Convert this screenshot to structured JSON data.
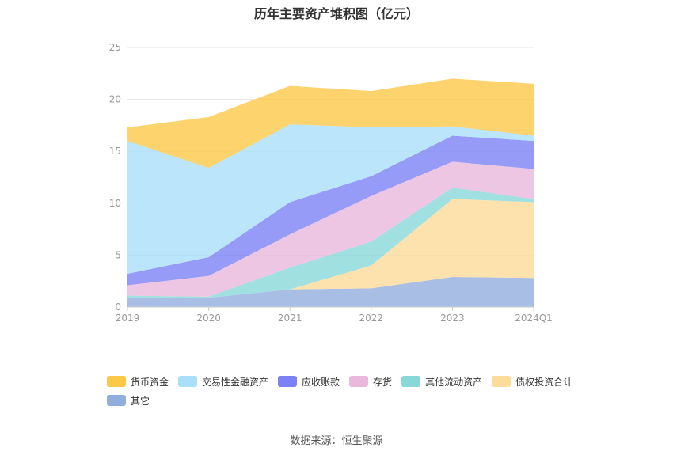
{
  "title": "历年主要资产堆积图（亿元）",
  "source": "数据来源：恒生聚源",
  "chart_data": {
    "type": "area",
    "stacked": true,
    "x": [
      "2019",
      "2020",
      "2021",
      "2022",
      "2023",
      "2024Q1"
    ],
    "ylim": [
      0,
      25
    ],
    "yticks": [
      0,
      5,
      10,
      15,
      20,
      25
    ],
    "grid": true,
    "legend_position": "bottom",
    "series": [
      {
        "name": "其它",
        "color": "#92aedd",
        "values": [
          0.9,
          0.9,
          1.7,
          1.8,
          2.9,
          2.8
        ]
      },
      {
        "name": "债权投资合计",
        "color": "#fddb9a",
        "values": [
          0.0,
          0.0,
          0.0,
          2.2,
          7.5,
          7.3
        ]
      },
      {
        "name": "其他流动资产",
        "color": "#88d8d8",
        "values": [
          0.2,
          0.1,
          2.1,
          2.3,
          1.1,
          0.3
        ]
      },
      {
        "name": "存货",
        "color": "#e9b8dc",
        "values": [
          1.0,
          2.0,
          3.2,
          4.4,
          2.5,
          2.9
        ]
      },
      {
        "name": "应收账款",
        "color": "#7a82f5",
        "values": [
          1.1,
          1.8,
          3.1,
          1.9,
          2.5,
          2.7
        ]
      },
      {
        "name": "交易性金融资产",
        "color": "#a9dff9",
        "values": [
          12.8,
          8.6,
          7.5,
          4.7,
          0.9,
          0.5
        ]
      },
      {
        "name": "货币资金",
        "color": "#fdc848",
        "values": [
          1.3,
          4.9,
          3.7,
          3.5,
          4.6,
          5.0
        ]
      }
    ],
    "legend_order": [
      "货币资金",
      "交易性金融资产",
      "应收账款",
      "存货",
      "其他流动资产",
      "债权投资合计",
      "其它"
    ]
  }
}
